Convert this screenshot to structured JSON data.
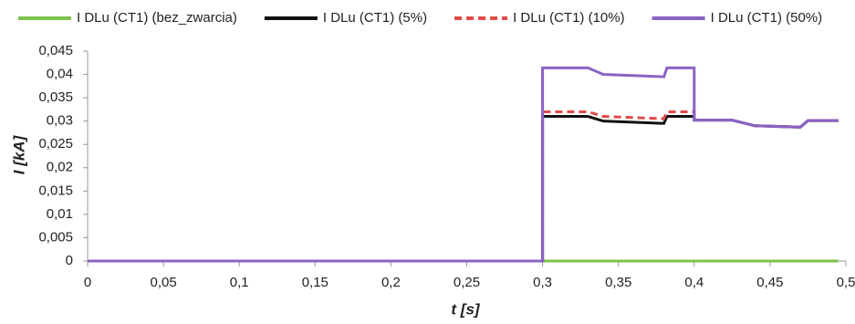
{
  "chart_data": {
    "type": "line",
    "x": [
      0,
      0.3,
      0.3,
      0.33,
      0.34,
      0.38,
      0.382,
      0.4,
      0.4,
      0.425,
      0.44,
      0.47,
      0.475,
      0.495
    ],
    "series": [
      {
        "name": "I DLu (CT1) (bez_zwarcia)",
        "color": "#7dc24b",
        "dash": "solid",
        "values": [
          0,
          0,
          0,
          0,
          0,
          0,
          0,
          0,
          0,
          0,
          0,
          0,
          0,
          0
        ]
      },
      {
        "name": "I DLu (CT1) (5%)",
        "color": "#111111",
        "dash": "solid",
        "values": [
          0,
          0,
          0.031,
          0.031,
          0.03,
          0.0295,
          0.031,
          0.031,
          0.0302,
          0.0302,
          0.029,
          0.0287,
          0.0301,
          0.0301
        ]
      },
      {
        "name": "I DLu (CT1) (10%)",
        "color": "#e04a4a",
        "dash": "dashed",
        "values": [
          0,
          0,
          0.032,
          0.032,
          0.031,
          0.0305,
          0.032,
          0.032,
          0.0302,
          0.0302,
          0.029,
          0.0287,
          0.0301,
          0.0301
        ]
      },
      {
        "name": "I DLu (CT1) (50%)",
        "color": "#8a63c4",
        "dash": "solid",
        "values": [
          0,
          0,
          0.0414,
          0.0414,
          0.04,
          0.0395,
          0.0414,
          0.0414,
          0.0302,
          0.0302,
          0.029,
          0.0287,
          0.0301,
          0.0301
        ]
      }
    ],
    "xlabel": "t [s]",
    "ylabel": "I [kA]",
    "xlim": [
      0,
      0.5
    ],
    "xticks": [
      0,
      {
        "value": 0.05,
        "label": "0,05"
      },
      {
        "value": 0.1,
        "label": "0,1"
      },
      {
        "value": 0.15,
        "label": "0,15"
      },
      {
        "value": 0.2,
        "label": "0,2"
      },
      {
        "value": 0.25,
        "label": "0,25"
      },
      {
        "value": 0.3,
        "label": "0,3"
      },
      {
        "value": 0.35,
        "label": "0,35"
      },
      {
        "value": 0.4,
        "label": "0,4"
      },
      {
        "value": 0.45,
        "label": "0,45"
      },
      {
        "value": 0.5,
        "label": "0,5"
      }
    ],
    "ylim": [
      0,
      0.045
    ],
    "yticks": [
      0,
      {
        "value": 0.005,
        "label": "0,005"
      },
      {
        "value": 0.01,
        "label": "0,01"
      },
      {
        "value": 0.015,
        "label": "0,015"
      },
      {
        "value": 0.02,
        "label": "0,02"
      },
      {
        "value": 0.025,
        "label": "0,025"
      },
      {
        "value": 0.03,
        "label": "0,03"
      },
      {
        "value": 0.035,
        "label": "0,035"
      },
      {
        "value": 0.04,
        "label": "0,04"
      },
      {
        "value": 0.045,
        "label": "0,045"
      }
    ],
    "legend": "top"
  }
}
